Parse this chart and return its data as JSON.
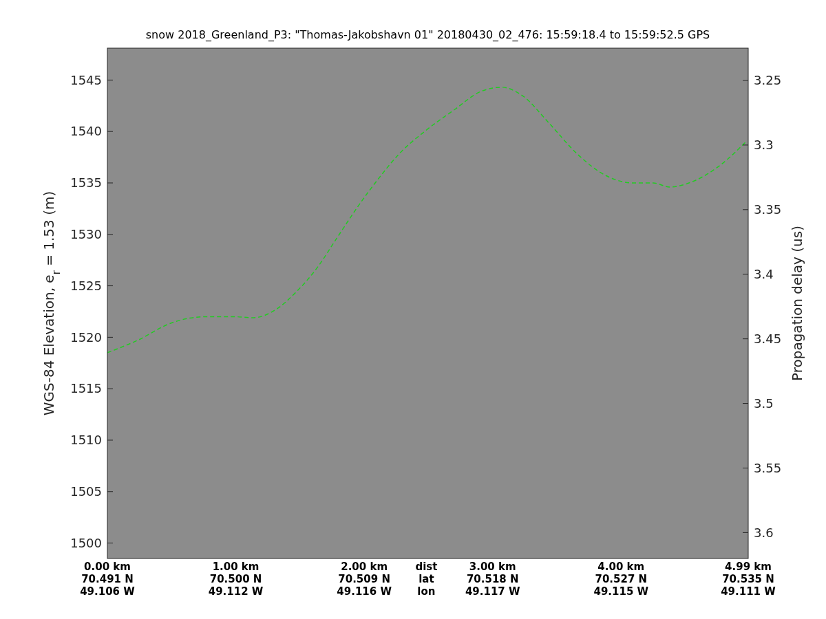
{
  "chart_data": {
    "type": "line",
    "title": "snow 2018_Greenland_P3: \"Thomas-Jakobshavn 01\"  20180430_02_476: 15:59:18.4 to 15:59:52.5 GPS",
    "ylabel": "WGS-84 Elevation, e$_{r}$ = 1.53 (m)",
    "y2label": "Propagation delay (us)",
    "xlim": [
      0,
      4.99
    ],
    "xticks": [
      {
        "value": 0,
        "label": "0.00 km"
      },
      {
        "value": 1,
        "label": "1.00 km"
      },
      {
        "value": 2,
        "label": "2.00 km"
      },
      {
        "value": 3,
        "label": "3.00 km"
      },
      {
        "value": 4,
        "label": "4.00 km"
      },
      {
        "value": 4.99,
        "label": "4.99 km"
      }
    ],
    "annotations": [
      "dist\nlat\nlon",
      "70.491 N\n49.106 W",
      "70.500 N\n49.112 W",
      "70.509 N\n49.116 W",
      "70.518 N\n49.117 W",
      "70.527 N\n49.115 W",
      "70.535 N\n49.111 W"
    ],
    "ylim": [
      1498.5,
      1548.1
    ],
    "yticks": [
      1500,
      1505,
      1510,
      1515,
      1520,
      1525,
      1530,
      1535,
      1540,
      1545
    ],
    "y2lim": [
      3.62,
      3.225
    ],
    "y2ticks": [
      3.25,
      3.3,
      3.35,
      3.4,
      3.45,
      3.5,
      3.55,
      3.6
    ],
    "grid": false,
    "marker": "none",
    "line_style": "dashed",
    "series": [
      {
        "color": "#22cc22",
        "x": [
          0,
          0.235,
          0.5,
          0.77,
          0.98,
          1.14,
          1.3,
          1.47,
          1.63,
          1.79,
          1.95,
          2.11,
          2.27,
          2.48,
          2.7,
          2.91,
          3.07,
          3.23,
          3.44,
          3.66,
          3.87,
          4.09,
          4.25,
          4.38,
          4.57,
          4.78,
          4.98
        ],
        "values": [
          1518.5,
          1519.7,
          1521.4,
          1522.0,
          1522.0,
          1521.9,
          1522.6,
          1524.4,
          1526.7,
          1529.7,
          1532.7,
          1535.4,
          1537.8,
          1540.1,
          1542.1,
          1543.9,
          1544.3,
          1543.5,
          1540.8,
          1537.8,
          1535.8,
          1535.0,
          1535.0,
          1534.6,
          1535.2,
          1536.8,
          1539.1
        ]
      }
    ]
  }
}
